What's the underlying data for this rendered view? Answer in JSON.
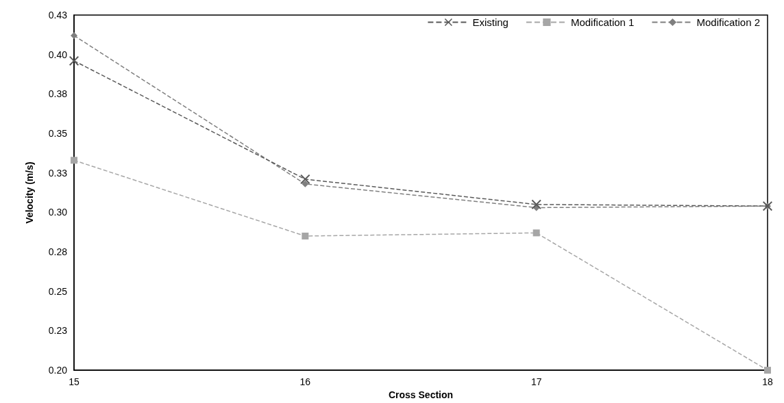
{
  "chart_data": {
    "type": "line",
    "xlabel": "Cross Section",
    "ylabel": "Velocity (m/s)",
    "x": [
      15,
      16,
      17,
      18
    ],
    "series": [
      {
        "name": "Existing",
        "color": "#595959",
        "marker": "cross",
        "values": [
          0.396,
          0.321,
          0.305,
          0.304
        ]
      },
      {
        "name": "Modification 1",
        "color": "#a6a6a6",
        "marker": "square",
        "values": [
          0.333,
          0.285,
          0.287,
          0.2
        ]
      },
      {
        "name": "Modification 2",
        "color": "#7f7f7f",
        "marker": "diamond",
        "values": [
          0.412,
          0.318,
          0.303,
          0.304
        ]
      }
    ],
    "xlim": [
      15,
      18
    ],
    "xticks": [
      15,
      16,
      17,
      18
    ],
    "ylim": [
      0.2,
      0.425
    ],
    "yticks": [
      {
        "value": 0.2,
        "label": "0.20"
      },
      {
        "value": 0.225,
        "label": "0.23"
      },
      {
        "value": 0.25,
        "label": "0.25"
      },
      {
        "value": 0.275,
        "label": "0.28"
      },
      {
        "value": 0.3,
        "label": "0.30"
      },
      {
        "value": 0.325,
        "label": "0.33"
      },
      {
        "value": 0.35,
        "label": "0.35"
      },
      {
        "value": 0.375,
        "label": "0.38"
      },
      {
        "value": 0.4,
        "label": "0.40"
      },
      {
        "value": 0.425,
        "label": "0.43"
      }
    ],
    "line_style": "dashed",
    "grid": false,
    "legend": "top right"
  }
}
